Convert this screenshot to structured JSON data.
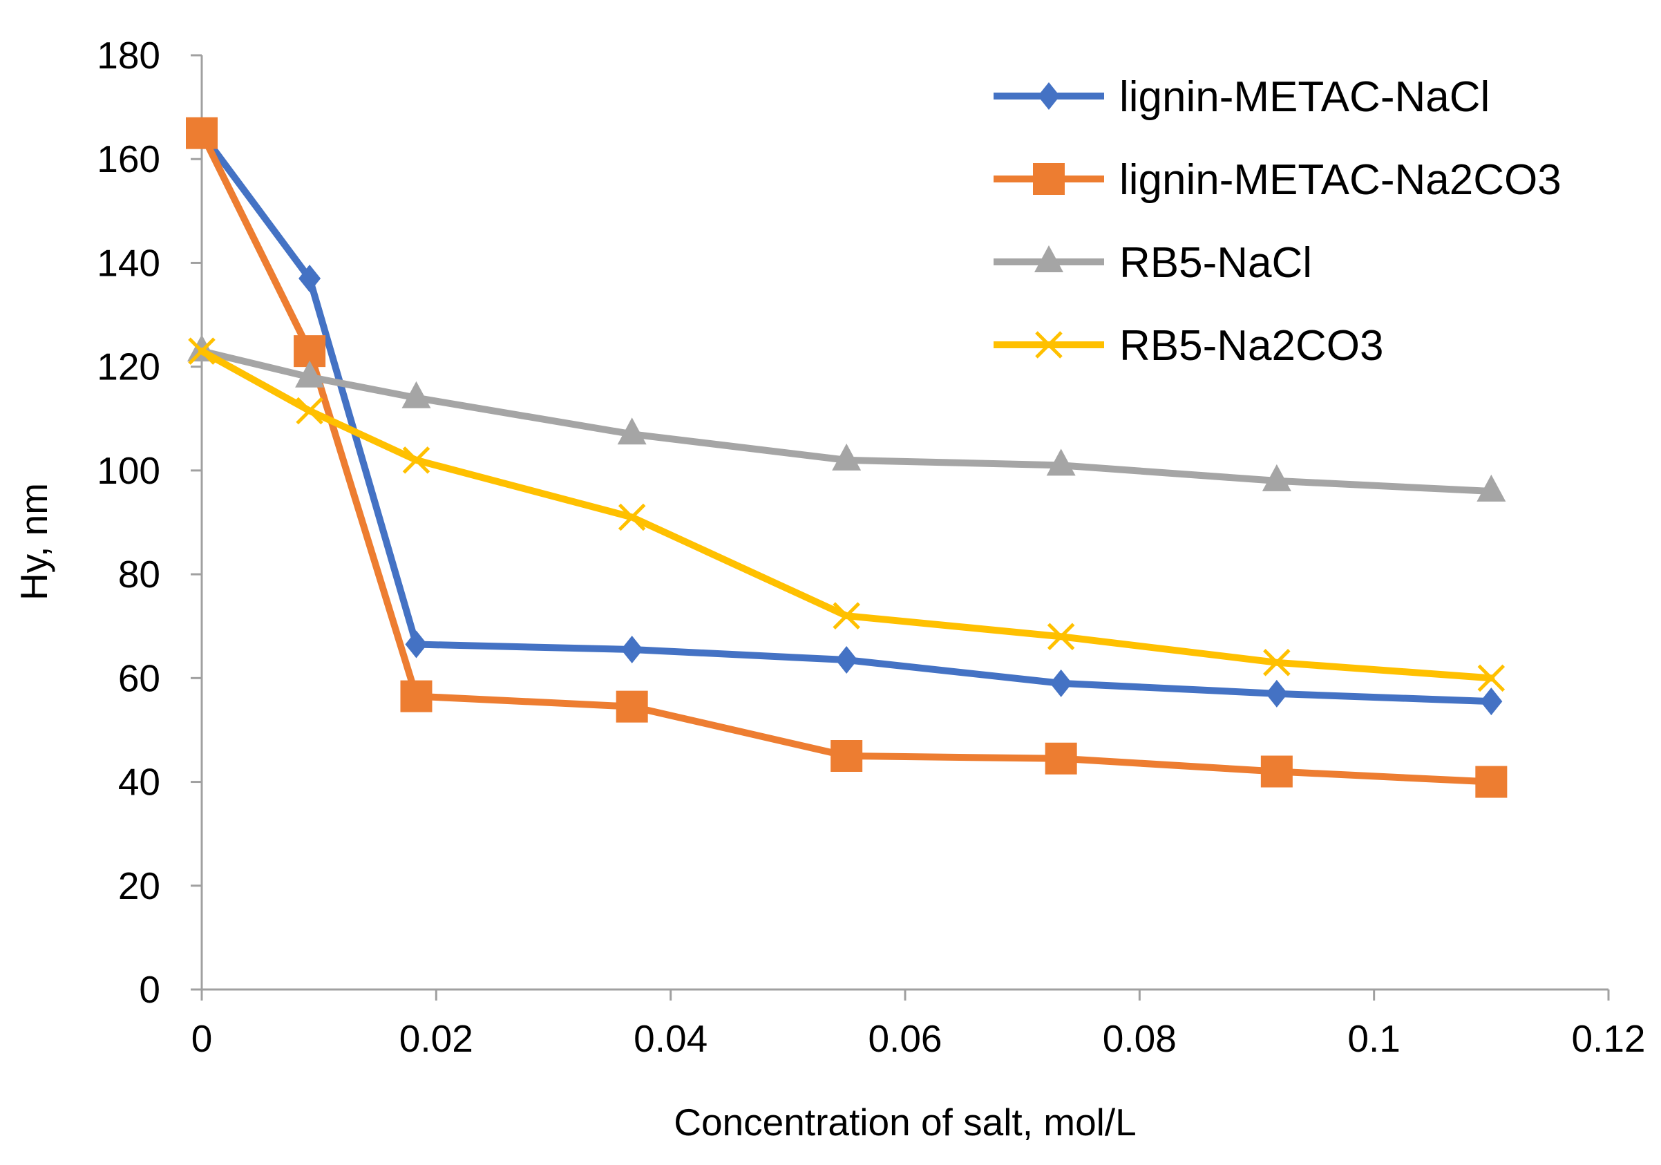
{
  "chart_data": {
    "type": "line",
    "title": "",
    "xlabel": "Concentration of salt, mol/L",
    "ylabel": "Hy, nm",
    "xlim": [
      0,
      0.12
    ],
    "ylim": [
      0,
      180
    ],
    "x_ticks": [
      0,
      0.02,
      0.04,
      0.06,
      0.08,
      0.1,
      0.12
    ],
    "x_tick_labels": [
      "0",
      "0.02",
      "0.04",
      "0.06",
      "0.08",
      "0.1",
      "0.12"
    ],
    "y_ticks": [
      0,
      20,
      40,
      60,
      80,
      100,
      120,
      140,
      160,
      180
    ],
    "y_tick_labels": [
      "0",
      "20",
      "40",
      "60",
      "80",
      "100",
      "120",
      "140",
      "160",
      "180"
    ],
    "grid": false,
    "legend_position": "top-right",
    "x": [
      0,
      0.0092,
      0.0183,
      0.0367,
      0.055,
      0.0733,
      0.0917,
      0.11
    ],
    "series": [
      {
        "name": "lignin-METAC-NaCl",
        "color": "#4472C4",
        "marker": "diamond",
        "values": [
          165,
          137,
          66.5,
          65.5,
          63.5,
          59,
          57,
          55.5
        ]
      },
      {
        "name": "lignin-METAC-Na2CO3",
        "color": "#ED7D31",
        "marker": "square",
        "values": [
          165,
          123,
          56.5,
          54.5,
          45,
          44.5,
          42,
          40
        ]
      },
      {
        "name": "RB5-NaCl",
        "color": "#A5A5A5",
        "marker": "triangle",
        "values": [
          123,
          118,
          114,
          107,
          102,
          101,
          98,
          96
        ]
      },
      {
        "name": "RB5-Na2CO3",
        "color": "#FFC000",
        "marker": "x",
        "values": [
          123,
          111.5,
          102,
          91,
          72,
          68,
          63,
          60
        ]
      }
    ]
  }
}
